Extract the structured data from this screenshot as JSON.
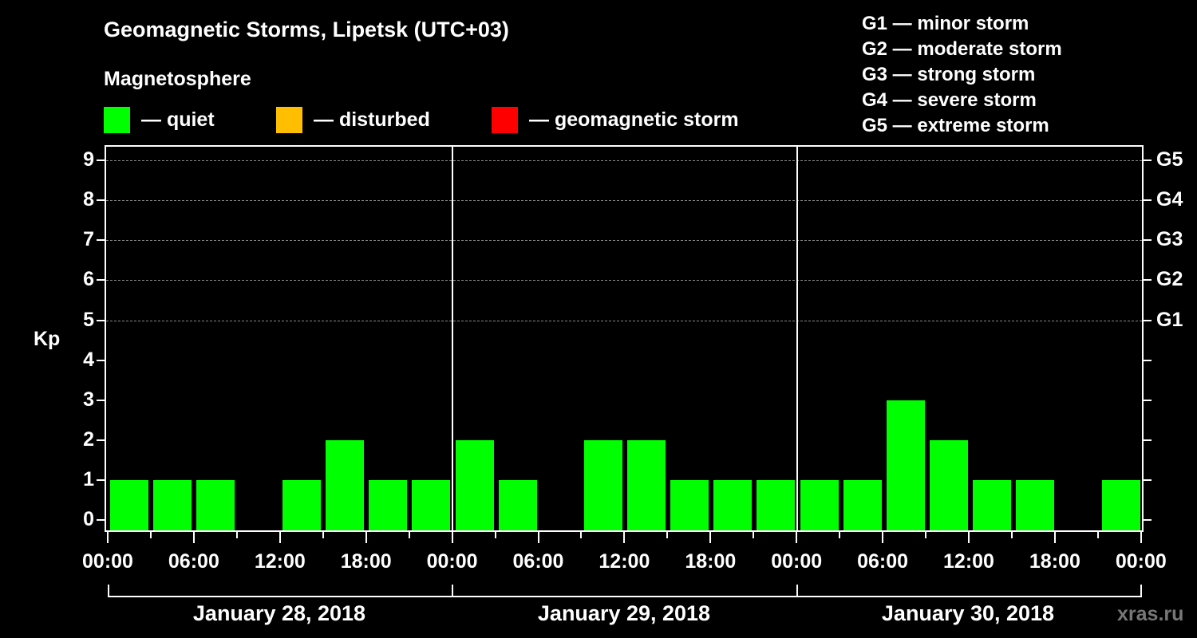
{
  "header": {
    "title": "Geomagnetic Storms, Lipetsk (UTC+03)",
    "subtitle": "Magnetosphere"
  },
  "legend": [
    {
      "label": "— quiet",
      "color": "#00ff00"
    },
    {
      "label": "— disturbed",
      "color": "#ffbf00"
    },
    {
      "label": "— geomagnetic storm",
      "color": "#ff0000"
    }
  ],
  "g_scale": [
    "G1 — minor storm",
    "G2 — moderate storm",
    "G3 — strong storm",
    "G4 — severe storm",
    "G5 — extreme storm"
  ],
  "axis": {
    "y_label": "Kp",
    "y_ticks": [
      "0",
      "1",
      "2",
      "3",
      "4",
      "5",
      "6",
      "7",
      "8",
      "9"
    ],
    "y_right_ticks": {
      "5": "G1",
      "6": "G2",
      "7": "G3",
      "8": "G4",
      "9": "G5"
    },
    "x_ticks": [
      "00:00",
      "06:00",
      "12:00",
      "18:00",
      "00:00",
      "06:00",
      "12:00",
      "18:00",
      "00:00",
      "06:00",
      "12:00",
      "18:00",
      "00:00"
    ],
    "days": [
      "January 28, 2018",
      "January 29, 2018",
      "January 30, 2018"
    ]
  },
  "watermark": "xras.ru",
  "chart_data": {
    "type": "bar",
    "title": "Geomagnetic Storms, Lipetsk (UTC+03)",
    "subtitle": "Magnetosphere",
    "xlabel": "",
    "ylabel": "Kp",
    "ylim": [
      0,
      9
    ],
    "grid": "horizontal dashed at Kp 5-9",
    "legend": [
      "quiet",
      "disturbed",
      "geomagnetic storm"
    ],
    "legend_colors": [
      "#00ff00",
      "#ffbf00",
      "#ff0000"
    ],
    "right_axis_labels": {
      "5": "G1",
      "6": "G2",
      "7": "G3",
      "8": "G4",
      "9": "G5"
    },
    "categories": [
      "Jan 28 00-03",
      "Jan 28 03-06",
      "Jan 28 06-09",
      "Jan 28 09-12",
      "Jan 28 12-15",
      "Jan 28 15-18",
      "Jan 28 18-21",
      "Jan 28 21-24",
      "Jan 29 00-03",
      "Jan 29 03-06",
      "Jan 29 06-09",
      "Jan 29 09-12",
      "Jan 29 12-15",
      "Jan 29 15-18",
      "Jan 29 18-21",
      "Jan 29 21-24",
      "Jan 30 00-03",
      "Jan 30 03-06",
      "Jan 30 06-09",
      "Jan 30 09-12",
      "Jan 30 12-15",
      "Jan 30 15-18",
      "Jan 30 18-21",
      "Jan 30 21-24"
    ],
    "values": [
      1,
      1,
      1,
      0,
      1,
      2,
      1,
      1,
      2,
      1,
      0,
      2,
      2,
      1,
      1,
      1,
      1,
      1,
      3,
      2,
      1,
      1,
      0,
      1
    ],
    "bar_status": "quiet (all bars green)"
  }
}
